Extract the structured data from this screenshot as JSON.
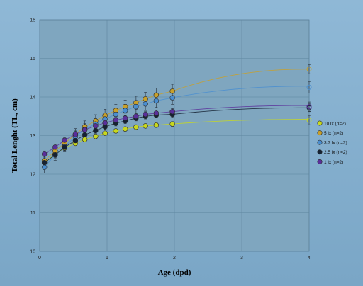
{
  "chart_data": {
    "type": "scatter",
    "xlabel": "Age (dpd)",
    "ylabel": "Total Lenght (TL, cm)",
    "xlim": [
      0,
      4
    ],
    "ylim": [
      10,
      16
    ],
    "xticks": [
      0,
      1,
      2,
      3,
      4
    ],
    "yticks": [
      10,
      11,
      12,
      13,
      14,
      15,
      16
    ],
    "legend_position": "right",
    "plot_background": "#7fa6bf",
    "fit_curve_end_x": 4,
    "series": [
      {
        "name": "10 lx (n=2)",
        "color": "#c8d81e",
        "x": [
          0.07,
          0.23,
          0.37,
          0.53,
          0.67,
          0.83,
          0.97,
          1.13,
          1.27,
          1.43,
          1.57,
          1.73,
          1.97,
          4.0
        ],
        "y": [
          12.3,
          12.52,
          12.68,
          12.8,
          12.9,
          12.98,
          13.06,
          13.12,
          13.17,
          13.22,
          13.25,
          13.27,
          13.3,
          13.4
        ],
        "err": [
          0.1,
          0.08,
          0.07,
          0.06,
          0.06,
          0.05,
          0.05,
          0.05,
          0.05,
          0.05,
          0.05,
          0.06,
          0.06,
          0.12
        ],
        "fit_end": 13.42
      },
      {
        "name": "5 lx (n=2)",
        "color": "#c8a02a",
        "x": [
          0.07,
          0.23,
          0.37,
          0.53,
          0.67,
          0.83,
          0.97,
          1.13,
          1.27,
          1.43,
          1.57,
          1.73,
          1.97,
          4.0
        ],
        "y": [
          12.35,
          12.6,
          12.8,
          13.03,
          13.23,
          13.38,
          13.52,
          13.65,
          13.75,
          13.85,
          13.95,
          14.05,
          14.15,
          14.72
        ],
        "err": [
          0.15,
          0.14,
          0.14,
          0.15,
          0.15,
          0.16,
          0.16,
          0.16,
          0.17,
          0.17,
          0.17,
          0.18,
          0.18,
          0.12
        ],
        "fit_end": 14.72
      },
      {
        "name": "3.7 lx (n=2)",
        "color": "#4a8ed0",
        "x": [
          0.07,
          0.23,
          0.37,
          0.53,
          0.67,
          0.83,
          0.97,
          1.13,
          1.27,
          1.43,
          1.57,
          1.73,
          1.97,
          4.0
        ],
        "y": [
          12.18,
          12.5,
          12.72,
          12.97,
          13.16,
          13.3,
          13.43,
          13.55,
          13.65,
          13.75,
          13.82,
          13.9,
          13.98,
          14.25
        ],
        "err": [
          0.15,
          0.14,
          0.14,
          0.15,
          0.15,
          0.15,
          0.16,
          0.16,
          0.16,
          0.16,
          0.17,
          0.17,
          0.17,
          0.15
        ],
        "fit_end": 14.28
      },
      {
        "name": "2.5 lx (n=2)",
        "color": "#152233",
        "x": [
          0.07,
          0.23,
          0.37,
          0.53,
          0.67,
          0.83,
          0.97,
          1.13,
          1.27,
          1.43,
          1.57,
          1.73,
          1.97,
          4.0
        ],
        "y": [
          12.3,
          12.5,
          12.7,
          12.87,
          13.02,
          13.13,
          13.23,
          13.32,
          13.38,
          13.45,
          13.5,
          13.53,
          13.55,
          13.72
        ],
        "err": [
          0.09,
          0.08,
          0.07,
          0.07,
          0.07,
          0.07,
          0.07,
          0.07,
          0.07,
          0.07,
          0.07,
          0.07,
          0.08,
          0.1
        ],
        "fit_end": 13.72
      },
      {
        "name": "1 lx (n=2)",
        "color": "#5a2f9a",
        "x": [
          0.07,
          0.23,
          0.37,
          0.53,
          0.67,
          0.83,
          0.97,
          1.13,
          1.27,
          1.43,
          1.57,
          1.73,
          1.97,
          4.0
        ],
        "y": [
          12.52,
          12.7,
          12.88,
          13.03,
          13.15,
          13.25,
          13.33,
          13.4,
          13.45,
          13.5,
          13.55,
          13.58,
          13.62,
          13.75
        ],
        "err": [
          0.08,
          0.08,
          0.08,
          0.08,
          0.07,
          0.07,
          0.07,
          0.07,
          0.07,
          0.07,
          0.07,
          0.08,
          0.08,
          0.12
        ],
        "fit_end": 13.78
      }
    ]
  }
}
